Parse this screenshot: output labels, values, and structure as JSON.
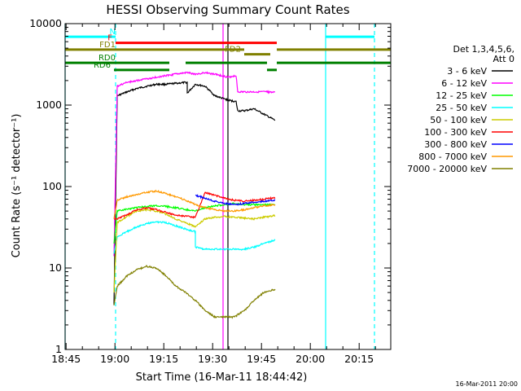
{
  "chart_data": {
    "type": "line",
    "title": "HESSI Observing Summary Count Rates",
    "xlabel": "Start Time (16-Mar-11 18:44:42)",
    "ylabel": "Count Rate (s⁻¹ detector⁻¹)",
    "x_unit": "minutes after 18:44:42",
    "xlim": [
      0,
      100
    ],
    "ylim": [
      1,
      10000
    ],
    "yscale": "log",
    "x_ticks": [
      "18:45",
      "19:00",
      "19:15",
      "19:30",
      "19:45",
      "20:00",
      "20:15"
    ],
    "y_ticks": [
      "1",
      "10",
      "100",
      "1000",
      "10000"
    ],
    "grid": false,
    "legend_placement": "right",
    "legend_header": [
      "Det 1,3,4,5,6,",
      "Att 0"
    ],
    "series": [
      {
        "name": "3 - 6 keV",
        "color": "#000000",
        "x": [
          15,
          16,
          19,
          22,
          25,
          28,
          31,
          34,
          37.5,
          37.5,
          40,
          43,
          46,
          50,
          52.5,
          53,
          55,
          58,
          64.5
        ],
        "y": [
          3.5,
          1300,
          1450,
          1600,
          1700,
          1800,
          1800,
          1850,
          1900,
          1400,
          1800,
          1700,
          1300,
          1150,
          1100,
          850,
          850,
          900,
          650
        ]
      },
      {
        "name": "6 - 12 keV",
        "color": "#ff00ff",
        "x": [
          15,
          16,
          19,
          22,
          25,
          28,
          31,
          34,
          37.5,
          40,
          43,
          46,
          50,
          52.5,
          53,
          58,
          64.5
        ],
        "y": [
          14,
          1700,
          1900,
          2000,
          2100,
          2200,
          2300,
          2400,
          2500,
          2400,
          2500,
          2400,
          2200,
          2300,
          1450,
          1450,
          1450
        ]
      },
      {
        "name": "12 - 25 keV",
        "color": "#00ff00",
        "x": [
          15,
          16,
          19,
          22,
          25,
          28,
          31,
          34,
          37,
          40,
          43,
          46,
          49,
          52,
          55,
          58,
          61,
          64.5
        ],
        "y": [
          20,
          50,
          53,
          55,
          57,
          58,
          57,
          55,
          52,
          50,
          55,
          58,
          60,
          62,
          60,
          60,
          60,
          60
        ]
      },
      {
        "name": "25 - 50 keV",
        "color": "#00ffff",
        "x": [
          15,
          16,
          19,
          22,
          25,
          28,
          31,
          34,
          37,
          40,
          40,
          43,
          46,
          49,
          52,
          55,
          58,
          61,
          64.5
        ],
        "y": [
          15,
          24,
          28,
          32,
          35,
          37,
          36,
          33,
          30,
          28,
          18,
          17,
          17,
          17,
          17,
          17,
          18,
          20,
          22
        ]
      },
      {
        "name": "50 - 100 keV",
        "color": "#cccc00",
        "x": [
          15,
          16,
          19,
          22,
          25,
          28,
          31,
          34,
          37,
          40,
          43,
          46,
          49,
          52,
          55,
          58,
          61,
          64.5
        ],
        "y": [
          5,
          36,
          43,
          50,
          52,
          50,
          46,
          40,
          36,
          32,
          40,
          42,
          43,
          42,
          41,
          40,
          42,
          44
        ]
      },
      {
        "name": "100 - 300 keV",
        "color": "#ff0000",
        "x": [
          15,
          16,
          19,
          22,
          25,
          28,
          31,
          34,
          37,
          40,
          43,
          46,
          49,
          52,
          55,
          58,
          61,
          64.5
        ],
        "y": [
          40,
          40,
          45,
          52,
          55,
          52,
          48,
          45,
          43,
          42,
          84,
          78,
          72,
          68,
          66,
          68,
          70,
          73
        ]
      },
      {
        "name": "300 - 800 keV",
        "color": "#0000ff",
        "x": [
          40,
          43,
          46,
          49,
          52,
          55,
          58,
          61,
          64.5
        ],
        "y": [
          78,
          72,
          66,
          62,
          60,
          62,
          64,
          66,
          68
        ]
      },
      {
        "name": "800 - 7000 keV",
        "color": "#ff9900",
        "x": [
          15,
          16,
          19,
          22,
          25,
          28,
          31,
          34,
          37,
          40,
          43,
          46,
          49,
          52,
          55,
          58,
          61,
          64.5
        ],
        "y": [
          40,
          68,
          75,
          80,
          85,
          88,
          82,
          75,
          68,
          60,
          55,
          52,
          50,
          50,
          52,
          55,
          58,
          60
        ]
      },
      {
        "name": "7000 - 20000 keV",
        "color": "#808000",
        "x": [
          15,
          16,
          19,
          22,
          25,
          28,
          31,
          34,
          37,
          40,
          43,
          46,
          49,
          52,
          55,
          58,
          61,
          64.5
        ],
        "y": [
          3.5,
          6,
          8,
          9.5,
          10.5,
          10,
          8,
          6,
          5,
          4,
          3,
          2.5,
          2.5,
          2.5,
          3,
          4,
          5,
          5.5
        ]
      }
    ],
    "vertical_lines": [
      {
        "x": 0,
        "color": "#00ffff",
        "style": "solid"
      },
      {
        "x": 15.5,
        "color": "#00ffff",
        "style": "dashed"
      },
      {
        "x": 48.5,
        "color": "#ff00ff",
        "style": "solid"
      },
      {
        "x": 50,
        "color": "#000000",
        "style": "solid"
      },
      {
        "x": 80,
        "color": "#00ffff",
        "style": "solid"
      },
      {
        "x": 95,
        "color": "#00ffff",
        "style": "dashed"
      }
    ],
    "flag_bars": [
      {
        "label": "N",
        "color": "#00ffff",
        "y": 6900,
        "segments": [
          [
            0,
            15.5
          ],
          [
            80,
            95
          ]
        ]
      },
      {
        "label": "F",
        "color": "#ff0000",
        "y": 5800,
        "segments": [
          [
            15.5,
            65
          ]
        ]
      },
      {
        "label": "FD1",
        "color": "#808000",
        "y": 4800,
        "segments": [
          [
            0,
            55
          ],
          [
            65,
            100
          ]
        ]
      },
      {
        "label": "FD2",
        "color": "#808000",
        "y": 4200,
        "segments": [
          [
            55,
            63
          ]
        ]
      },
      {
        "label": "RD0",
        "color": "#008000",
        "y": 3300,
        "segments": [
          [
            0,
            32
          ],
          [
            37,
            62
          ],
          [
            65,
            100
          ]
        ]
      },
      {
        "label": "RD6",
        "color": "#008000",
        "y": 2700,
        "segments": [
          [
            15,
            32
          ],
          [
            62,
            65
          ]
        ]
      }
    ]
  },
  "footer": {
    "date_stamp": "16-Mar-2011 20:00"
  }
}
